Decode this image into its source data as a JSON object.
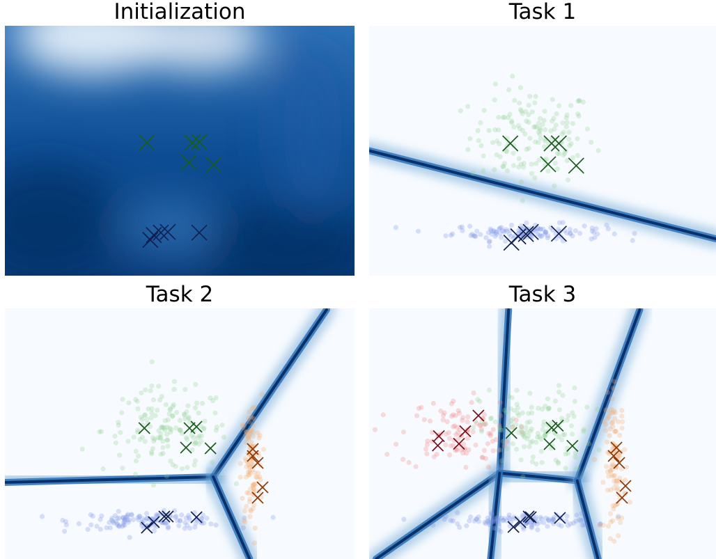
{
  "figure": {
    "panels": [
      {
        "title": "Initialization"
      },
      {
        "title": "Task 1"
      },
      {
        "title": "Task 2"
      },
      {
        "title": "Task 3"
      }
    ]
  },
  "colors": {
    "boundary": "#08306b",
    "heat_light": "#f7fbff",
    "heat_dark": "#0b4a8f",
    "green_points": "#8fd18f",
    "green_marker": "#1a5c1a",
    "blue_points": "#7f94e6",
    "blue_marker": "#0f2050",
    "orange_points": "#f5a86a",
    "orange_marker": "#8c3a08",
    "red_points": "#f08080",
    "red_marker": "#7a0f1a"
  },
  "chart_data": [
    {
      "type": "scatter",
      "title": "Initialization",
      "xlim": [
        0,
        10
      ],
      "ylim": [
        0,
        7.2
      ],
      "grid": false,
      "axes_visible": false,
      "background": "dense-heatmap",
      "series": [
        {
          "class": "green",
          "points_visible": false,
          "prototypes": [
            [
              4.06,
              3.83
            ],
            [
              5.36,
              3.83
            ],
            [
              5.56,
              3.85
            ],
            [
              5.26,
              3.26
            ],
            [
              5.97,
              3.19
            ]
          ]
        },
        {
          "class": "blue",
          "points_visible": false,
          "prototypes": [
            [
              4.16,
              1.03
            ],
            [
              4.26,
              1.17
            ],
            [
              4.46,
              1.24
            ],
            [
              4.66,
              1.26
            ],
            [
              5.56,
              1.24
            ]
          ]
        }
      ]
    },
    {
      "type": "scatter",
      "title": "Task 1",
      "xlim": [
        0,
        10
      ],
      "ylim": [
        0,
        7.2
      ],
      "grid": false,
      "axes_visible": false,
      "background": "boundary-heatmap",
      "boundary_lines": [
        [
          [
            0.0,
            3.6
          ],
          [
            10.0,
            1.06
          ]
        ]
      ],
      "series": [
        {
          "class": "green",
          "center": [
            4.7,
            4.0
          ],
          "spread": [
            0.9,
            0.7
          ],
          "n": 150,
          "prototypes": [
            [
              4.07,
              3.81
            ],
            [
              5.26,
              3.81
            ],
            [
              5.47,
              3.81
            ],
            [
              5.16,
              3.21
            ],
            [
              5.97,
              3.17
            ]
          ]
        },
        {
          "class": "blue",
          "center": [
            4.6,
            1.25
          ],
          "spread": [
            1.1,
            0.12
          ],
          "n": 130,
          "prototypes": [
            [
              4.1,
              0.95
            ],
            [
              4.3,
              1.13
            ],
            [
              4.52,
              1.2
            ],
            [
              4.66,
              1.26
            ],
            [
              5.47,
              1.21
            ]
          ]
        }
      ]
    },
    {
      "type": "scatter",
      "title": "Task 2",
      "xlim": [
        0,
        10
      ],
      "ylim": [
        0,
        7.2
      ],
      "grid": false,
      "axes_visible": false,
      "background": "boundary-heatmap",
      "boundary_lines": [
        [
          [
            0.0,
            2.2
          ],
          [
            5.96,
            2.36
          ]
        ],
        [
          [
            5.96,
            2.36
          ],
          [
            9.2,
            7.16
          ]
        ],
        [
          [
            5.96,
            2.36
          ],
          [
            7.0,
            0.0
          ]
        ]
      ],
      "series": [
        {
          "class": "green",
          "center": [
            4.6,
            3.7
          ],
          "spread": [
            0.9,
            0.6
          ],
          "n": 150,
          "prototypes": [
            [
              3.99,
              3.76
            ],
            [
              5.28,
              3.76
            ],
            [
              5.48,
              3.8
            ],
            [
              5.18,
              3.2
            ],
            [
              5.88,
              3.18
            ]
          ]
        },
        {
          "class": "blue",
          "center": [
            4.2,
            1.1
          ],
          "spread": [
            1.1,
            0.12
          ],
          "n": 130,
          "prototypes": [
            [
              4.06,
              0.9
            ],
            [
              4.26,
              1.06
            ],
            [
              4.56,
              1.22
            ],
            [
              4.66,
              1.22
            ],
            [
              5.48,
              1.2
            ]
          ]
        },
        {
          "class": "orange",
          "center": [
            7.05,
            2.7
          ],
          "spread": [
            0.15,
            1.0
          ],
          "n": 110,
          "prototypes": [
            [
              7.09,
              3.16
            ],
            [
              7.09,
              2.96
            ],
            [
              7.23,
              2.76
            ],
            [
              7.37,
              2.06
            ],
            [
              7.23,
              1.76
            ]
          ]
        }
      ]
    },
    {
      "type": "scatter",
      "title": "Task 3",
      "xlim": [
        0,
        10
      ],
      "ylim": [
        0,
        7.2
      ],
      "grid": false,
      "axes_visible": false,
      "background": "boundary-heatmap",
      "boundary_lines": [
        [
          [
            3.76,
            2.47
          ],
          [
            4.02,
            7.16
          ]
        ],
        [
          [
            3.76,
            2.47
          ],
          [
            0.2,
            0.0
          ]
        ],
        [
          [
            3.76,
            2.47
          ],
          [
            6.0,
            2.25
          ]
        ],
        [
          [
            6.0,
            2.25
          ],
          [
            7.8,
            7.16
          ]
        ],
        [
          [
            6.0,
            2.25
          ],
          [
            6.6,
            0.0
          ]
        ],
        [
          [
            3.76,
            2.47
          ],
          [
            3.5,
            0.0
          ]
        ]
      ],
      "series": [
        {
          "class": "red",
          "center": [
            2.5,
            3.6
          ],
          "spread": [
            0.8,
            0.5
          ],
          "n": 110,
          "prototypes": [
            [
              3.15,
              4.12
            ],
            [
              2.77,
              3.67
            ],
            [
              2.01,
              3.53
            ],
            [
              1.98,
              3.26
            ],
            [
              2.59,
              3.31
            ]
          ]
        },
        {
          "class": "green",
          "center": [
            4.8,
            3.7
          ],
          "spread": [
            0.8,
            0.6
          ],
          "n": 130,
          "prototypes": [
            [
              4.1,
              3.62
            ],
            [
              5.26,
              3.77
            ],
            [
              5.44,
              3.83
            ],
            [
              5.2,
              3.3
            ],
            [
              5.86,
              3.25
            ]
          ]
        },
        {
          "class": "blue",
          "center": [
            4.3,
            1.1
          ],
          "spread": [
            1.1,
            0.1
          ],
          "n": 120,
          "prototypes": [
            [
              4.16,
              0.92
            ],
            [
              4.36,
              1.06
            ],
            [
              4.6,
              1.22
            ],
            [
              4.66,
              1.2
            ],
            [
              5.5,
              1.18
            ]
          ]
        },
        {
          "class": "orange",
          "center": [
            7.1,
            2.7
          ],
          "spread": [
            0.16,
            1.0
          ],
          "n": 110,
          "prototypes": [
            [
              7.13,
              3.2
            ],
            [
              7.05,
              2.96
            ],
            [
              7.21,
              2.76
            ],
            [
              7.39,
              2.1
            ],
            [
              7.29,
              1.76
            ]
          ]
        }
      ]
    }
  ]
}
